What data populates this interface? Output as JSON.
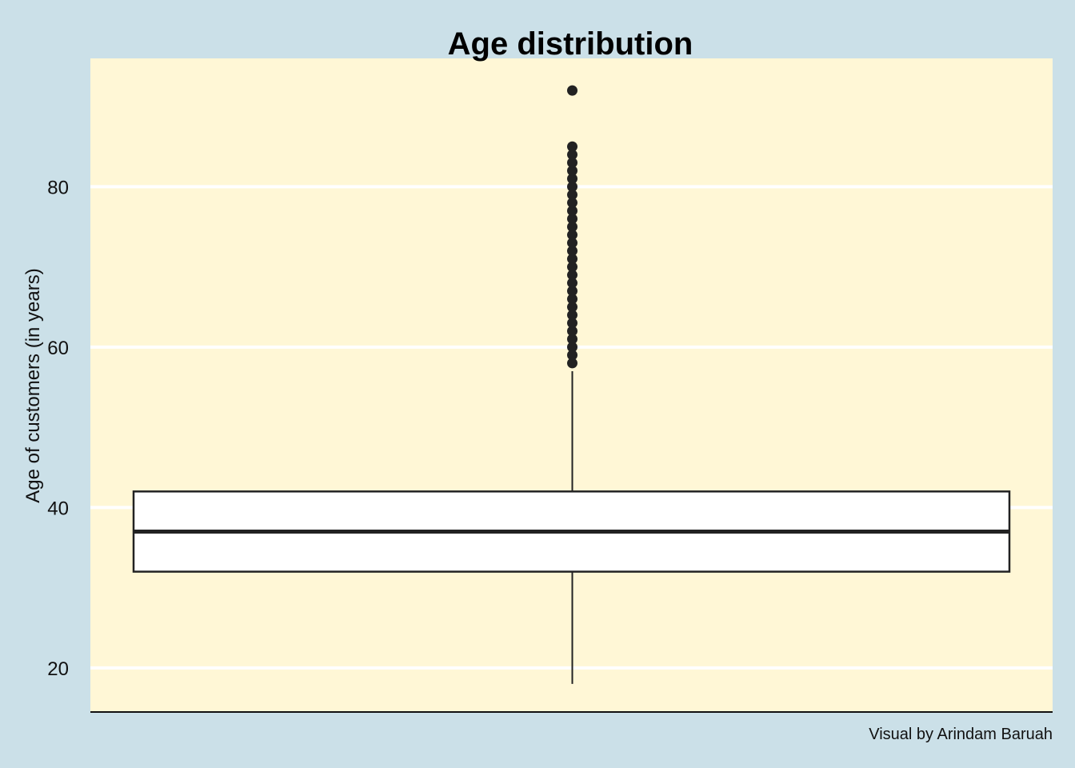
{
  "chart_data": {
    "type": "box",
    "title": "Age distribution",
    "xlabel": "",
    "ylabel": "Age of customers (in years)",
    "caption": "Visual by Arindam Baruah",
    "ylim": [
      14.5,
      96
    ],
    "yticks": [
      20,
      40,
      60,
      80
    ],
    "grid": true,
    "colors": {
      "page_background": "#cbe0e8",
      "panel_background": "#fff7d6",
      "grid": "#ffffff",
      "box_fill": "#ffffff",
      "box_stroke": "#222222",
      "outlier": "#222222"
    },
    "box": {
      "min": 18,
      "q1": 32,
      "median": 37,
      "q3": 42,
      "max": 57,
      "outliers": [
        58,
        59,
        60,
        61,
        62,
        63,
        64,
        65,
        66,
        67,
        68,
        69,
        70,
        71,
        72,
        73,
        74,
        75,
        76,
        77,
        78,
        79,
        80,
        81,
        82,
        83,
        84,
        85,
        92
      ]
    }
  }
}
